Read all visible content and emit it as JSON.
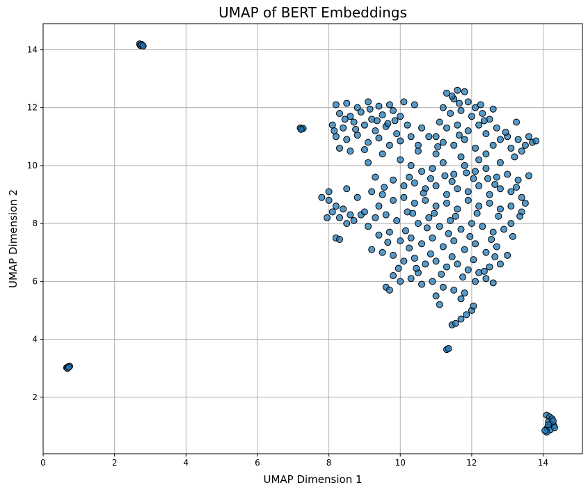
{
  "chart_data": {
    "type": "scatter",
    "title": "UMAP of BERT Embeddings",
    "xlabel": "UMAP Dimension 1",
    "ylabel": "UMAP Dimension 2",
    "xlim": [
      0,
      15.1
    ],
    "ylim": [
      0.05,
      14.9
    ],
    "xticks": [
      0,
      2,
      4,
      6,
      8,
      10,
      12,
      14
    ],
    "yticks": [
      2,
      4,
      6,
      8,
      10,
      12,
      14
    ],
    "grid": true,
    "marker_color": "#1f77b4",
    "marker_edge_color": "#000000",
    "marker_alpha": 0.75,
    "series": [
      {
        "points": [
          [
            2.7,
            14.2
          ],
          [
            2.74,
            14.17
          ],
          [
            2.78,
            14.14
          ],
          [
            2.72,
            14.15
          ],
          [
            2.76,
            14.18
          ],
          [
            2.8,
            14.13
          ],
          [
            0.66,
            3.02
          ],
          [
            0.7,
            3.05
          ],
          [
            0.74,
            3.07
          ],
          [
            0.68,
            3.0
          ],
          [
            0.72,
            3.04
          ],
          [
            7.2,
            11.3
          ],
          [
            7.24,
            11.27
          ],
          [
            7.28,
            11.28
          ],
          [
            7.22,
            11.25
          ],
          [
            14.1,
            1.38
          ],
          [
            14.18,
            1.32
          ],
          [
            14.25,
            1.25
          ],
          [
            14.15,
            1.15
          ],
          [
            14.22,
            1.08
          ],
          [
            14.3,
            1.02
          ],
          [
            14.12,
            0.95
          ],
          [
            14.2,
            0.88
          ],
          [
            14.1,
            0.8
          ],
          [
            14.28,
            1.18
          ],
          [
            14.15,
            1.05
          ],
          [
            14.05,
            0.85
          ],
          [
            14.32,
            0.95
          ],
          [
            8.2,
            12.1
          ],
          [
            8.5,
            12.15
          ],
          [
            8.8,
            12.0
          ],
          [
            9.1,
            12.2
          ],
          [
            9.4,
            12.05
          ],
          [
            9.7,
            12.1
          ],
          [
            10.1,
            12.2
          ],
          [
            10.4,
            12.1
          ],
          [
            8.3,
            11.8
          ],
          [
            8.6,
            11.7
          ],
          [
            8.9,
            11.85
          ],
          [
            9.2,
            11.6
          ],
          [
            9.5,
            11.75
          ],
          [
            9.8,
            11.9
          ],
          [
            10.0,
            11.7
          ],
          [
            8.1,
            11.4
          ],
          [
            8.4,
            11.3
          ],
          [
            8.7,
            11.5
          ],
          [
            9.0,
            11.4
          ],
          [
            9.3,
            11.2
          ],
          [
            9.6,
            11.35
          ],
          [
            9.9,
            11.1
          ],
          [
            10.2,
            11.4
          ],
          [
            8.2,
            11.0
          ],
          [
            8.5,
            10.9
          ],
          [
            8.8,
            11.05
          ],
          [
            9.1,
            10.8
          ],
          [
            9.4,
            10.95
          ],
          [
            9.7,
            10.7
          ],
          [
            10.0,
            10.85
          ],
          [
            8.3,
            10.6
          ],
          [
            8.6,
            10.5
          ],
          [
            9.0,
            10.55
          ],
          [
            9.5,
            10.4
          ],
          [
            8.15,
            11.2
          ],
          [
            8.75,
            11.25
          ],
          [
            9.35,
            11.55
          ],
          [
            9.65,
            11.45
          ],
          [
            8.45,
            11.6
          ],
          [
            9.15,
            11.95
          ],
          [
            9.85,
            11.55
          ],
          [
            10.3,
            11.0
          ],
          [
            10.5,
            10.7
          ],
          [
            10.6,
            11.3
          ],
          [
            10.8,
            11.0
          ],
          [
            11.3,
            12.5
          ],
          [
            11.6,
            12.6
          ],
          [
            11.8,
            12.55
          ],
          [
            11.5,
            12.3
          ],
          [
            11.9,
            12.2
          ],
          [
            12.1,
            12.0
          ],
          [
            11.2,
            12.0
          ],
          [
            11.4,
            11.8
          ],
          [
            11.7,
            11.9
          ],
          [
            12.0,
            11.7
          ],
          [
            12.3,
            11.8
          ],
          [
            12.5,
            11.6
          ],
          [
            11.1,
            11.5
          ],
          [
            11.3,
            11.3
          ],
          [
            11.6,
            11.4
          ],
          [
            11.9,
            11.2
          ],
          [
            12.2,
            11.4
          ],
          [
            12.4,
            11.1
          ],
          [
            12.7,
            11.3
          ],
          [
            13.0,
            11.0
          ],
          [
            13.3,
            10.9
          ],
          [
            13.5,
            10.7
          ],
          [
            13.7,
            10.8
          ],
          [
            11.0,
            11.0
          ],
          [
            11.2,
            10.8
          ],
          [
            11.5,
            10.7
          ],
          [
            11.8,
            10.9
          ],
          [
            12.1,
            10.6
          ],
          [
            12.4,
            10.4
          ],
          [
            12.6,
            10.7
          ],
          [
            13.25,
            11.5
          ],
          [
            13.6,
            11.0
          ],
          [
            13.8,
            10.85
          ],
          [
            12.8,
            10.9
          ],
          [
            13.1,
            10.6
          ],
          [
            13.4,
            10.5
          ],
          [
            11.65,
            12.15
          ],
          [
            12.25,
            12.1
          ],
          [
            12.6,
            11.95
          ],
          [
            11.45,
            12.4
          ],
          [
            10.0,
            10.2
          ],
          [
            10.3,
            10.0
          ],
          [
            10.6,
            9.8
          ],
          [
            10.9,
            9.9
          ],
          [
            11.2,
            10.1
          ],
          [
            11.5,
            9.7
          ],
          [
            11.8,
            10.0
          ],
          [
            12.1,
            9.8
          ],
          [
            12.4,
            9.9
          ],
          [
            12.7,
            9.6
          ],
          [
            13.0,
            9.7
          ],
          [
            13.3,
            9.5
          ],
          [
            13.6,
            9.65
          ],
          [
            9.8,
            9.5
          ],
          [
            10.1,
            9.3
          ],
          [
            10.4,
            9.4
          ],
          [
            10.7,
            9.2
          ],
          [
            11.0,
            9.3
          ],
          [
            11.3,
            9.0
          ],
          [
            11.6,
            9.2
          ],
          [
            11.9,
            9.1
          ],
          [
            12.2,
            9.3
          ],
          [
            12.5,
            9.0
          ],
          [
            12.8,
            9.2
          ],
          [
            13.1,
            9.1
          ],
          [
            13.4,
            8.9
          ],
          [
            9.5,
            9.0
          ],
          [
            9.8,
            8.8
          ],
          [
            10.1,
            8.9
          ],
          [
            10.4,
            8.7
          ],
          [
            10.7,
            8.8
          ],
          [
            11.0,
            8.6
          ],
          [
            11.3,
            8.7
          ],
          [
            11.6,
            8.5
          ],
          [
            11.9,
            8.8
          ],
          [
            12.2,
            8.6
          ],
          [
            12.5,
            8.7
          ],
          [
            12.8,
            8.5
          ],
          [
            13.1,
            8.6
          ],
          [
            13.4,
            8.4
          ],
          [
            13.5,
            8.7
          ],
          [
            7.8,
            8.9
          ],
          [
            8.0,
            8.8
          ],
          [
            8.2,
            8.6
          ],
          [
            8.4,
            8.5
          ],
          [
            8.1,
            8.4
          ],
          [
            7.95,
            8.2
          ],
          [
            8.3,
            8.2
          ],
          [
            8.6,
            8.3
          ],
          [
            8.2,
            7.5
          ],
          [
            8.3,
            7.45
          ],
          [
            8.5,
            8.0
          ],
          [
            8.7,
            8.1
          ],
          [
            8.9,
            8.3
          ],
          [
            8.0,
            9.1
          ],
          [
            8.5,
            9.2
          ],
          [
            8.8,
            8.9
          ],
          [
            9.2,
            9.1
          ],
          [
            9.0,
            8.4
          ],
          [
            9.3,
            8.2
          ],
          [
            9.6,
            8.3
          ],
          [
            9.9,
            8.1
          ],
          [
            10.2,
            8.4
          ],
          [
            10.5,
            8.0
          ],
          [
            10.8,
            8.2
          ],
          [
            11.1,
            7.9
          ],
          [
            11.4,
            8.1
          ],
          [
            11.7,
            7.8
          ],
          [
            12.0,
            8.0
          ],
          [
            12.3,
            7.9
          ],
          [
            12.6,
            7.7
          ],
          [
            12.9,
            7.8
          ],
          [
            13.1,
            8.0
          ],
          [
            9.1,
            7.9
          ],
          [
            9.4,
            7.6
          ],
          [
            9.7,
            7.7
          ],
          [
            10.0,
            7.4
          ],
          [
            10.3,
            7.5
          ],
          [
            10.6,
            7.3
          ],
          [
            10.9,
            7.5
          ],
          [
            11.2,
            7.2
          ],
          [
            11.5,
            7.4
          ],
          [
            11.8,
            7.1
          ],
          [
            12.1,
            7.3
          ],
          [
            12.4,
            7.0
          ],
          [
            12.7,
            7.2
          ],
          [
            13.0,
            6.9
          ],
          [
            9.2,
            7.1
          ],
          [
            9.5,
            7.0
          ],
          [
            9.8,
            6.9
          ],
          [
            10.1,
            6.7
          ],
          [
            10.4,
            6.8
          ],
          [
            10.7,
            6.6
          ],
          [
            11.0,
            6.7
          ],
          [
            11.3,
            6.5
          ],
          [
            11.6,
            6.6
          ],
          [
            11.9,
            6.4
          ],
          [
            12.2,
            6.3
          ],
          [
            12.5,
            6.5
          ],
          [
            12.8,
            6.6
          ],
          [
            9.8,
            6.2
          ],
          [
            10.0,
            6.0
          ],
          [
            10.3,
            6.1
          ],
          [
            10.6,
            5.9
          ],
          [
            10.9,
            6.0
          ],
          [
            11.2,
            5.8
          ],
          [
            11.5,
            5.7
          ],
          [
            11.8,
            5.6
          ],
          [
            12.1,
            6.0
          ],
          [
            12.4,
            6.1
          ],
          [
            12.6,
            5.95
          ],
          [
            9.6,
            5.8
          ],
          [
            9.7,
            5.7
          ],
          [
            10.5,
            6.3
          ],
          [
            11.0,
            5.5
          ],
          [
            11.1,
            5.2
          ],
          [
            11.7,
            5.4
          ],
          [
            12.0,
            5.0
          ],
          [
            12.05,
            5.15
          ],
          [
            11.45,
            4.5
          ],
          [
            11.55,
            4.55
          ],
          [
            11.7,
            4.7
          ],
          [
            11.85,
            4.85
          ],
          [
            11.3,
            3.65
          ],
          [
            11.35,
            3.68
          ],
          [
            9.1,
            10.1
          ],
          [
            9.3,
            9.6
          ],
          [
            10.5,
            10.5
          ],
          [
            11.0,
            10.4
          ],
          [
            11.7,
            10.3
          ],
          [
            12.2,
            10.2
          ],
          [
            12.8,
            10.1
          ],
          [
            13.2,
            10.3
          ],
          [
            9.4,
            8.6
          ],
          [
            10.25,
            9.6
          ],
          [
            10.85,
            9.55
          ],
          [
            11.45,
            9.45
          ],
          [
            12.05,
            9.55
          ],
          [
            12.65,
            9.35
          ],
          [
            13.25,
            9.25
          ],
          [
            10.35,
            8.35
          ],
          [
            10.95,
            8.35
          ],
          [
            11.55,
            8.25
          ],
          [
            12.15,
            8.35
          ],
          [
            12.75,
            8.25
          ],
          [
            13.35,
            8.25
          ],
          [
            10.15,
            7.75
          ],
          [
            10.75,
            7.85
          ],
          [
            11.35,
            7.65
          ],
          [
            11.95,
            7.55
          ],
          [
            12.55,
            7.45
          ],
          [
            13.15,
            7.55
          ],
          [
            9.65,
            7.35
          ],
          [
            10.25,
            7.15
          ],
          [
            10.85,
            6.95
          ],
          [
            11.45,
            6.85
          ],
          [
            12.05,
            6.75
          ],
          [
            12.65,
            6.85
          ],
          [
            11.15,
            6.25
          ],
          [
            11.75,
            6.15
          ],
          [
            12.35,
            6.35
          ],
          [
            10.45,
            6.45
          ],
          [
            9.95,
            6.45
          ],
          [
            10.65,
            9.05
          ],
          [
            11.25,
            9.65
          ],
          [
            11.85,
            9.75
          ],
          [
            12.45,
            9.55
          ],
          [
            9.55,
            9.25
          ],
          [
            11.05,
            10.65
          ],
          [
            11.65,
            11.05
          ],
          [
            12.35,
            11.55
          ],
          [
            12.95,
            11.15
          ]
        ]
      }
    ]
  }
}
